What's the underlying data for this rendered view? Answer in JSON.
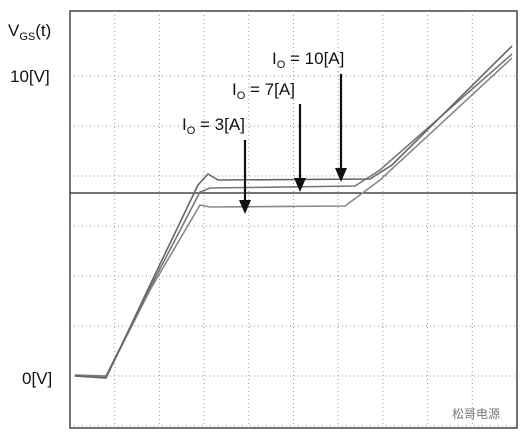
{
  "axis_label": {
    "symbol": "V",
    "subscript": "GS",
    "suffix": "(t)"
  },
  "level_labels": [
    "10[V]",
    "0[V]"
  ],
  "annotations": [
    {
      "symbol": "I",
      "subscript": "O",
      "text": " = 10[A]"
    },
    {
      "symbol": "I",
      "subscript": "O",
      "text": " = 7[A]"
    },
    {
      "symbol": "I",
      "subscript": "O",
      "text": " = 3[A]"
    }
  ],
  "watermark": "松哥电源"
}
